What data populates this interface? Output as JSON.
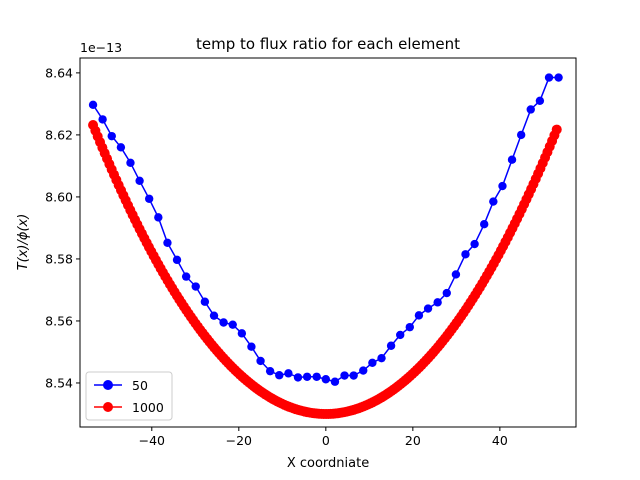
{
  "chart_data": {
    "type": "line",
    "title": "temp to flux ratio for each element",
    "xlabel": "X coordniate",
    "ylabel": "T(x)/ϕ(x)",
    "offset_text": "1e−13",
    "xlim": [
      -56.5,
      57.5
    ],
    "ylim": [
      8.5258,
      8.6448
    ],
    "xticks": [
      -40,
      -20,
      0,
      20,
      40
    ],
    "xtick_labels": [
      "−40",
      "−20",
      "0",
      "20",
      "40"
    ],
    "yticks": [
      8.54,
      8.56,
      8.58,
      8.6,
      8.62,
      8.64
    ],
    "ytick_labels": [
      "8.54",
      "8.56",
      "8.58",
      "8.60",
      "8.62",
      "8.64"
    ],
    "grid": false,
    "legend_position": "lower-left",
    "series": [
      {
        "name": "50",
        "color": "#0000ff",
        "marker": "circle",
        "x": [
          -53.5,
          -51.3,
          -49.2,
          -47.1,
          -44.9,
          -42.8,
          -40.6,
          -38.5,
          -36.4,
          -34.2,
          -32.1,
          -29.9,
          -27.8,
          -25.7,
          -23.5,
          -21.4,
          -19.3,
          -17.1,
          -15.0,
          -12.8,
          -10.7,
          -8.6,
          -6.4,
          -4.3,
          -2.1,
          0.0,
          2.1,
          4.3,
          6.4,
          8.6,
          10.7,
          12.8,
          15.0,
          17.1,
          19.3,
          21.4,
          23.5,
          25.7,
          27.8,
          29.9,
          32.1,
          34.2,
          36.4,
          38.5,
          40.6,
          42.8,
          44.9,
          47.1,
          49.2,
          51.3,
          53.5
        ],
        "y": [
          8.6297,
          8.625,
          8.6196,
          8.616,
          8.611,
          8.6052,
          8.5994,
          8.5934,
          8.5852,
          8.5797,
          8.5743,
          8.5711,
          8.5662,
          8.5617,
          8.5595,
          8.5588,
          8.556,
          8.5517,
          8.5471,
          8.5438,
          8.5425,
          8.5431,
          8.5418,
          8.542,
          8.542,
          8.5412,
          8.5404,
          8.5424,
          8.5424,
          8.544,
          8.5465,
          8.548,
          8.552,
          8.5555,
          8.558,
          8.5618,
          8.564,
          8.566,
          8.569,
          8.575,
          8.5815,
          8.5848,
          8.5912,
          8.5985,
          8.6035,
          8.612,
          8.62,
          8.6282,
          8.631,
          8.6385,
          8.6385
        ]
      },
      {
        "name": "1000",
        "color": "#ff0000",
        "marker": "circle",
        "equation_note": "",
        "x_range": [
          -53.5,
          53.5
        ],
        "x_center": 0,
        "y_min": 8.53,
        "y_end": 8.6232,
        "n_points": 1000
      }
    ]
  }
}
